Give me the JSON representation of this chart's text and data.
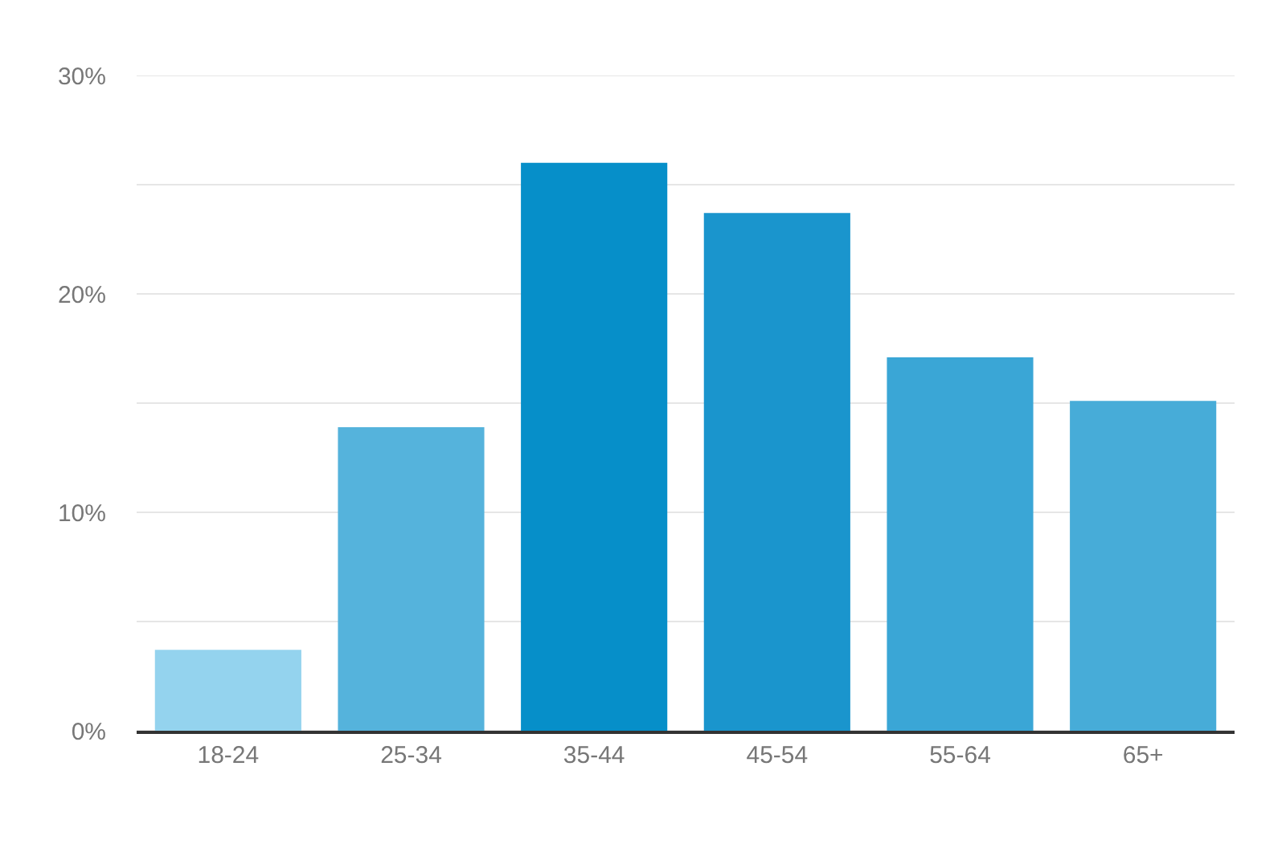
{
  "chart_data": {
    "type": "bar",
    "categories": [
      "18-24",
      "25-34",
      "35-44",
      "45-54",
      "55-64",
      "65+"
    ],
    "values": [
      3.7,
      13.9,
      26,
      23.7,
      17.1,
      15.1
    ],
    "colors": [
      "#94d3ee",
      "#55b3dc",
      "#068fc9",
      "#1a95cd",
      "#3aa6d6",
      "#47acd8"
    ],
    "ylim": [
      0,
      30
    ],
    "yticks": [
      {
        "value": 0,
        "label": "0%"
      },
      {
        "value": 5,
        "label": null
      },
      {
        "value": 10,
        "label": "10%"
      },
      {
        "value": 15,
        "label": null
      },
      {
        "value": 20,
        "label": "20%"
      },
      {
        "value": 25,
        "label": null
      },
      {
        "value": 30,
        "label": "30%"
      }
    ],
    "grid": "y"
  }
}
